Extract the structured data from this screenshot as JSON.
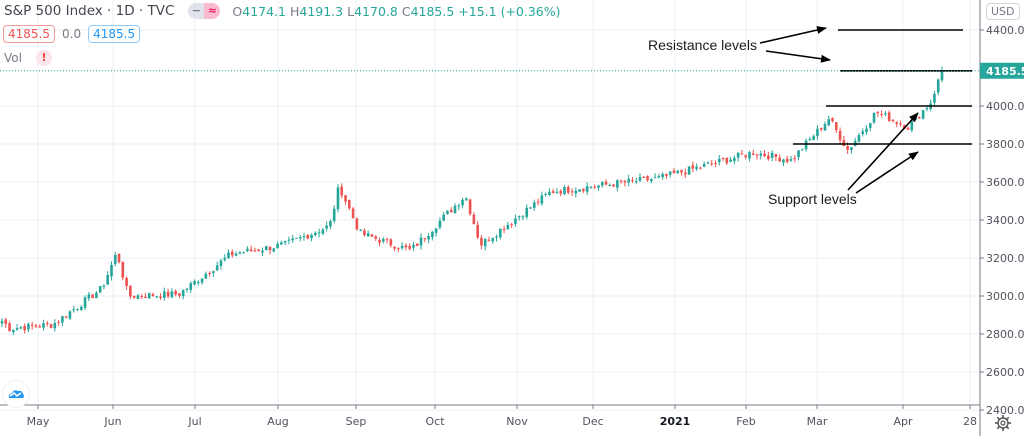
{
  "header": {
    "symbol_title": "S&P 500 Index · 1D · TVC",
    "ohlc": {
      "open_label": "O",
      "open": "4174.1",
      "high_label": "H",
      "high": "4191.3",
      "low_label": "L",
      "low": "4170.8",
      "close_label": "C",
      "close": "4185.5",
      "change": "+15.1 (+0.36%)"
    },
    "bid": "4185.5",
    "spread": "0.0",
    "ask": "4185.5",
    "volume_label": "Vol",
    "volume_warning": "!",
    "currency": "USD"
  },
  "icons": {
    "logo": "tradingview-cloud-icon",
    "settings": "gear-icon",
    "warning": "warning-icon"
  },
  "annotations": {
    "resistance_label": "Resistance levels",
    "support_label": "Support levels"
  },
  "colors": {
    "up": "#26a69a",
    "down": "#ef5350",
    "grid": "#e8f2f7",
    "last_price_bg": "#26a69a",
    "level_line": "#000000"
  },
  "chart_data": {
    "type": "candlestick",
    "title": "S&P 500 Index · 1D · TVC",
    "xlabel": "",
    "ylabel": "USD",
    "ylim": [
      2400,
      4400
    ],
    "y_ticks": [
      "4400.0",
      "4000.0",
      "3800.0",
      "3600.0",
      "3400.0",
      "3200.0",
      "3000.0",
      "2800.0",
      "2600.0",
      "2400.0"
    ],
    "x_ticks": [
      "May",
      "Jun",
      "Jul",
      "Aug",
      "Sep",
      "Oct",
      "Nov",
      "Dec",
      "2021",
      "Feb",
      "Mar",
      "Apr",
      "28"
    ],
    "last_price": "4185.5",
    "grid": true,
    "horizontal_levels": [
      {
        "name": "resistance",
        "price": 4400
      },
      {
        "name": "resistance",
        "price": 4185
      },
      {
        "name": "support",
        "price": 4000
      },
      {
        "name": "support",
        "price": 3800
      }
    ],
    "close_anchors": [
      {
        "date": "Apr 27",
        "close": 2870
      },
      {
        "date": "May 1",
        "close": 2830
      },
      {
        "date": "May 14",
        "close": 2850
      },
      {
        "date": "May 29",
        "close": 3040
      },
      {
        "date": "Jun 8",
        "close": 3230
      },
      {
        "date": "Jun 11",
        "close": 3000
      },
      {
        "date": "Jun 26",
        "close": 3010
      },
      {
        "date": "Jul 15",
        "close": 3220
      },
      {
        "date": "Jul 31",
        "close": 3270
      },
      {
        "date": "Aug 14",
        "close": 3370
      },
      {
        "date": "Sep 2",
        "close": 3580
      },
      {
        "date": "Sep 8",
        "close": 3330
      },
      {
        "date": "Sep 23",
        "close": 3240
      },
      {
        "date": "Oct 12",
        "close": 3530
      },
      {
        "date": "Oct 30",
        "close": 3270
      },
      {
        "date": "Nov 9",
        "close": 3550
      },
      {
        "date": "Nov 30",
        "close": 3620
      },
      {
        "date": "Dec 31",
        "close": 3756
      },
      {
        "date": "Jan 29",
        "close": 3714
      },
      {
        "date": "Feb 12",
        "close": 3935
      },
      {
        "date": "Mar 4",
        "close": 3768
      },
      {
        "date": "Mar 15",
        "close": 3968
      },
      {
        "date": "Mar 24",
        "close": 3890
      },
      {
        "date": "Apr 1",
        "close": 4020
      },
      {
        "date": "Apr 15",
        "close": 4185.5
      }
    ]
  }
}
